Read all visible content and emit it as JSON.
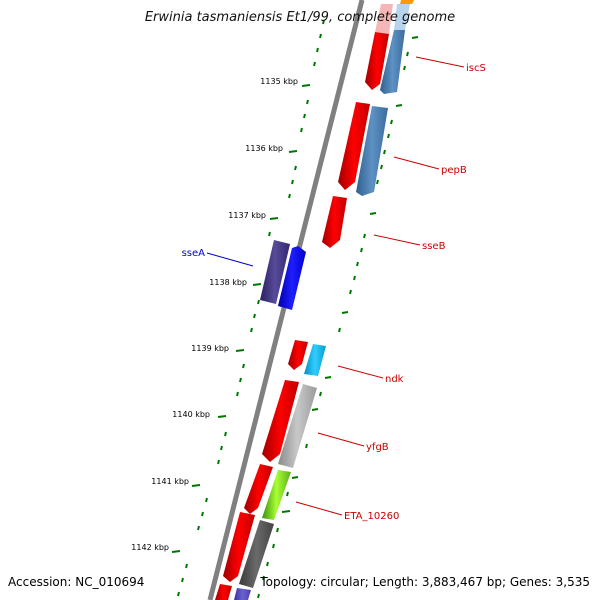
{
  "title": "Erwinia tasmaniensis Et1/99, complete genome",
  "footer": {
    "accession": "Accession: NC_010694",
    "summary": "Topology: circular; Length: 3,883,467 bp; Genes: 3,535"
  },
  "ticks": [
    "1135 kbp",
    "1136 kbp",
    "1137 kbp",
    "1138 kbp",
    "1139 kbp",
    "1140 kbp",
    "1141 kbp",
    "1142 kbp"
  ],
  "gene_labels": [
    "iscS",
    "pepB",
    "sseB",
    "sseA",
    "ndk",
    "yfgB",
    "ETA_10260"
  ],
  "colors": {
    "forward_strand": "#ff0000",
    "reverse_strand_label": "#0000cc",
    "forward_label": "#cc0000",
    "backbone": "#808080",
    "tick": "#007700"
  }
}
